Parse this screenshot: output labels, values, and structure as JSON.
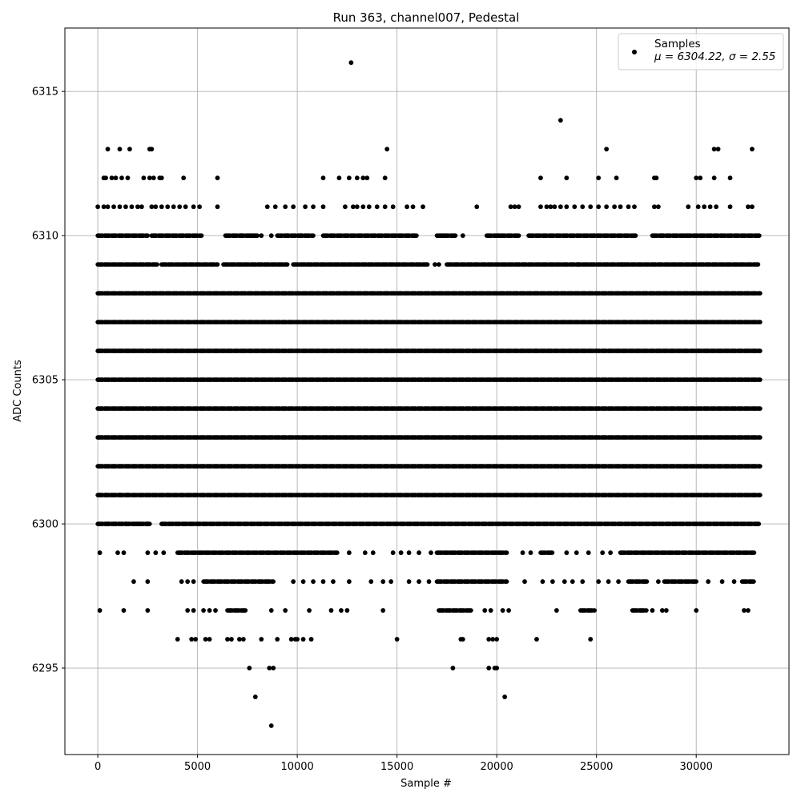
{
  "chart_data": {
    "type": "scatter",
    "title": "Run 363, channel007, Pedestal",
    "xlabel": "Sample #",
    "ylabel": "ADC Counts",
    "xlim": [
      -1650,
      34650
    ],
    "ylim": [
      6292.0,
      6317.2
    ],
    "x_ticks": [
      0,
      5000,
      10000,
      15000,
      20000,
      25000,
      30000
    ],
    "y_ticks": [
      6295,
      6300,
      6305,
      6310,
      6315
    ],
    "grid": true,
    "marker_color": "#000000",
    "legend": {
      "position": "top-right",
      "entries": [
        {
          "label": "Samples",
          "sublabel": "μ = 6304.22, σ = 2.55"
        }
      ]
    },
    "series": [
      {
        "name": "Samples",
        "n_samples": 33000,
        "levels": [
          {
            "y": 6310,
            "segments": [
              [
                0,
                2500
              ],
              [
                2700,
                5200
              ],
              [
                6400,
                8000
              ],
              [
                9000,
                10800
              ],
              [
                11300,
                16000
              ],
              [
                17000,
                18000
              ],
              [
                19500,
                21200
              ],
              [
                21600,
                27000
              ],
              [
                27800,
                33200
              ]
            ],
            "sparse": [
              7200,
              7700,
              8200,
              8700,
              9500,
              10200,
              17300,
              18300,
              20100,
              24900,
              28300,
              29500
            ]
          },
          {
            "y": 6309,
            "segments": [
              [
                0,
                3000
              ],
              [
                3200,
                6000
              ],
              [
                6300,
                9500
              ],
              [
                9800,
                16600
              ],
              [
                17500,
                33200
              ]
            ],
            "sparse": [
              16900,
              17100,
              24100,
              26300
            ]
          },
          {
            "y": 6308,
            "segments": [
              [
                0,
                33200
              ]
            ],
            "sparse": []
          },
          {
            "y": 6307,
            "segments": [
              [
                0,
                33200
              ]
            ],
            "sparse": []
          },
          {
            "y": 6306,
            "segments": [
              [
                0,
                33200
              ]
            ],
            "sparse": []
          },
          {
            "y": 6305,
            "segments": [
              [
                0,
                33200
              ]
            ],
            "sparse": []
          },
          {
            "y": 6304,
            "segments": [
              [
                0,
                33200
              ]
            ],
            "sparse": []
          },
          {
            "y": 6303,
            "segments": [
              [
                0,
                33200
              ]
            ],
            "sparse": []
          },
          {
            "y": 6302,
            "segments": [
              [
                0,
                33200
              ]
            ],
            "sparse": []
          },
          {
            "y": 6301,
            "segments": [
              [
                0,
                33200
              ]
            ],
            "sparse": [
              100,
              400,
              700,
              1100,
              1500
            ]
          },
          {
            "y": 6300,
            "segments": [
              [
                0,
                2600
              ],
              [
                3200,
                33200
              ]
            ],
            "sparse": [
              500,
              900,
              1400,
              2000,
              2500
            ]
          },
          {
            "y": 6299,
            "segments": [
              [
                4000,
                12000
              ],
              [
                17000,
                20500
              ],
              [
                22200,
                22800
              ],
              [
                26200,
                32900
              ]
            ],
            "sparse": [
              100,
              1000,
              1300,
              2500,
              2900,
              3300,
              12600,
              13400,
              13800,
              14800,
              15200,
              15600,
              16100,
              16700,
              21300,
              21700,
              23500,
              24000,
              24600,
              25300,
              25700
            ]
          },
          {
            "y": 6298,
            "segments": [
              [
                5300,
                8800
              ],
              [
                17000,
                20500
              ],
              [
                26600,
                27600
              ],
              [
                28400,
                30000
              ],
              [
                32300,
                32900
              ]
            ],
            "sparse": [
              1800,
              2500,
              4200,
              4500,
              4800,
              9800,
              10300,
              10800,
              11300,
              11800,
              12600,
              13700,
              14300,
              14700,
              15600,
              16100,
              16600,
              21400,
              22300,
              22800,
              23400,
              23800,
              24300,
              25100,
              25600,
              26100,
              28100,
              30600,
              31300,
              31900
            ]
          },
          {
            "y": 6297,
            "segments": [
              [
                6500,
                7400
              ],
              [
                17100,
                18800
              ],
              [
                24200,
                24900
              ],
              [
                26800,
                27500
              ]
            ],
            "sparse": [
              100,
              1300,
              2500,
              4500,
              4800,
              5300,
              5600,
              5900,
              8700,
              9400,
              10600,
              11700,
              12200,
              12500,
              14300,
              19400,
              19700,
              20300,
              20600,
              23000,
              27800,
              28300,
              28500,
              30000,
              32400,
              32600
            ]
          },
          {
            "y": 6296,
            "segments": [],
            "sparse": [
              4000,
              4700,
              4900,
              5400,
              5600,
              6500,
              6700,
              7100,
              7300,
              8200,
              9000,
              9700,
              9900,
              10000,
              10300,
              10700,
              15000,
              18200,
              18300,
              19600,
              19800,
              20000,
              22000,
              24700
            ]
          },
          {
            "y": 6295,
            "segments": [],
            "sparse": [
              7600,
              8600,
              8800,
              17800,
              19600,
              19900,
              20000
            ]
          },
          {
            "y": 6294,
            "segments": [],
            "sparse": [
              7900,
              20400
            ]
          },
          {
            "y": 6293,
            "segments": [],
            "sparse": [
              8700
            ]
          },
          {
            "y": 6311,
            "segments": [],
            "sparse": [
              0,
              300,
              500,
              800,
              1100,
              1400,
              1700,
              2000,
              2200,
              2700,
              2900,
              3200,
              3500,
              3800,
              4100,
              4400,
              4800,
              5100,
              6000,
              8500,
              8900,
              9400,
              9800,
              10400,
              10800,
              11300,
              12400,
              12800,
              13000,
              13300,
              13600,
              14000,
              14400,
              14800,
              15500,
              15800,
              16300,
              19000,
              20700,
              20900,
              21100,
              22200,
              22500,
              22700,
              22900,
              23200,
              23500,
              23900,
              24300,
              24700,
              25100,
              25500,
              25900,
              26200,
              26600,
              26900,
              27900,
              28100,
              29600,
              30100,
              30400,
              30700,
              31000,
              31700,
              32600,
              32800
            ]
          },
          {
            "y": 6312,
            "segments": [],
            "sparse": [
              300,
              400,
              700,
              900,
              1200,
              1500,
              2300,
              2600,
              2800,
              3100,
              3200,
              4300,
              6000,
              11300,
              12100,
              12600,
              13000,
              13300,
              13500,
              14400,
              22200,
              23500,
              25100,
              26000,
              27900,
              28000,
              30000,
              30200,
              30900,
              31700
            ]
          },
          {
            "y": 6313,
            "segments": [],
            "sparse": [
              500,
              1100,
              1600,
              2600,
              2700,
              14500,
              25500,
              30900,
              31100,
              32800
            ]
          },
          {
            "y": 6314,
            "segments": [],
            "sparse": [
              23200
            ]
          },
          {
            "y": 6316,
            "segments": [],
            "sparse": [
              12700
            ]
          }
        ]
      }
    ]
  }
}
